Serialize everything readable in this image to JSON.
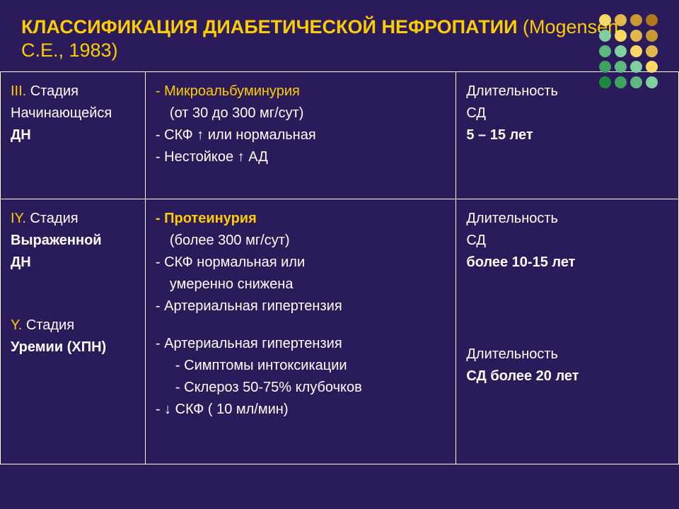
{
  "header": {
    "title_bold": "КЛАССИФИКАЦИЯ ДИАБЕТИЧЕСКОЙ НЕФРОПАТИИ",
    "title_normal": " (Mogensen C.E., 1983)"
  },
  "dots": {
    "colors": [
      "#f8d864",
      "#e0b84b",
      "#c89832",
      "#b07819",
      "#7fcf9f",
      "#f8d864",
      "#e0b84b",
      "#c89832",
      "#5fb87f",
      "#7fcf9f",
      "#f8d864",
      "#e0b84b",
      "#3fa05f",
      "#5fb87f",
      "#7fcf9f",
      "#f8d864",
      "#1f883f",
      "#3fa05f",
      "#5fb87f",
      "#7fcf9f"
    ]
  },
  "table": {
    "row1": {
      "stage_num": "III.",
      "stage_line1": " Стадия",
      "stage_line2": "Начинающейся",
      "stage_line3": "ДН",
      "feat1_hl": "- Микроальбуминурия",
      "feat1_sub": "(от 30 до 300 мг/сут)",
      "feat2": "- СКФ  ↑ или нормальная",
      "feat3": "- Нестойкое ↑ АД",
      "dur1": "Длительность",
      "dur2": "СД",
      "dur3": "5 – 15 лет"
    },
    "row2": {
      "stageA_num": "IY.",
      "stageA_line1": " Стадия",
      "stageA_line2": "Выраженной",
      "stageA_line3": "ДН",
      "stageB_num": "Y.",
      "stageB_line1": " Стадия",
      "stageB_line2": "Уремии (ХПН)",
      "featA1_hl": "- Протеинурия",
      "featA1_sub": "(более 300 мг/сут)",
      "featA2a": "- СКФ нормальная или",
      "featA2b": "умеренно снижена",
      "featA3": "- Артериальная гипертензия",
      "featB1": "- Артериальная гипертензия",
      "featB2": "- Симптомы интоксикации",
      "featB3": "- Склероз 50-75% клубочков",
      "featB4": "- ↓ СКФ ( 10 мл/мин)",
      "durA1": "Длительность",
      "durA2": "СД",
      "durA3": "более 10-15 лет",
      "durB1": "Длительность",
      "durB2": "СД  более 20 лет"
    }
  },
  "colors": {
    "background": "#2b1b5a",
    "accent": "#ffcc00",
    "text": "#ffffff",
    "border": "#ffffff"
  }
}
